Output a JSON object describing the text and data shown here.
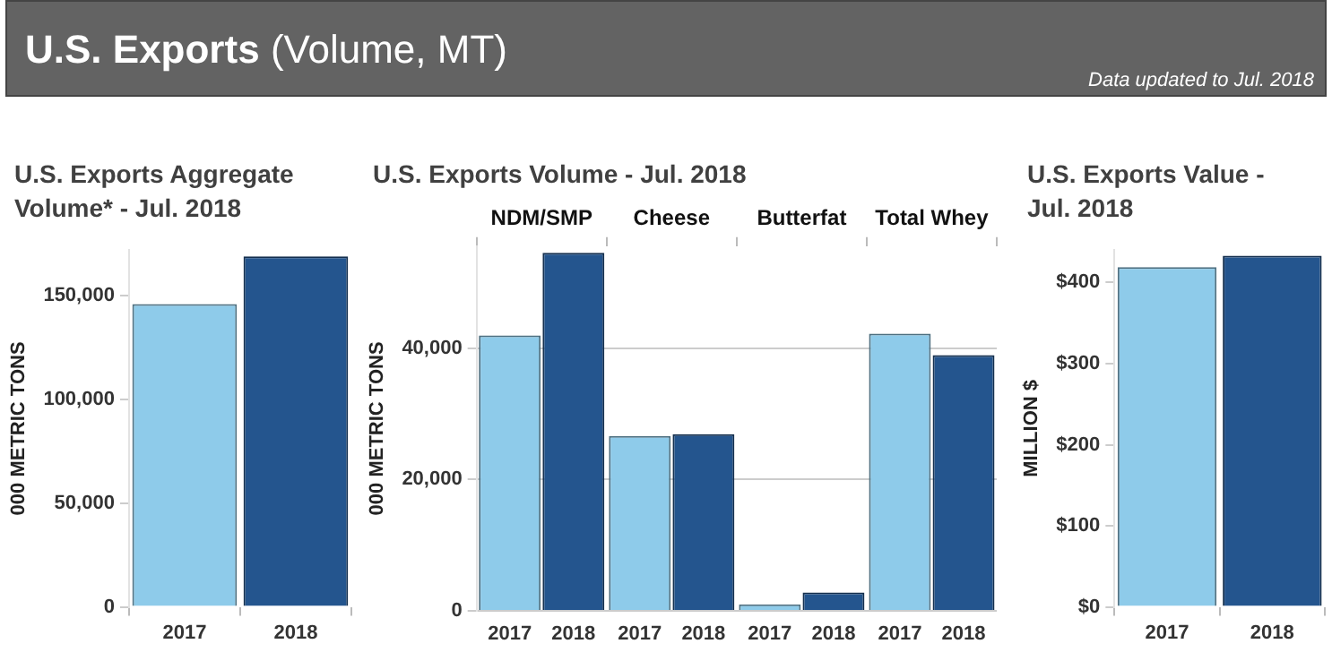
{
  "chart_data": [
    {
      "type": "other",
      "title": "U.S. Exports",
      "subtitle": "(Volume, MT)",
      "annotations": [
        "Data updated to Jul. 2018"
      ]
    },
    {
      "type": "bar",
      "title": "U.S. Exports Aggregate Volume* - Jul. 2018",
      "ylabel": "000 METRIC TONS",
      "categories": [
        "2017",
        "2018"
      ],
      "values": [
        146000,
        169000
      ],
      "colors": [
        "#8ecbea",
        "#24558e"
      ],
      "ylim": [
        0,
        172000
      ],
      "yticks": [
        0,
        {
          "value": 50000,
          "label": "50,000"
        },
        {
          "value": 100000,
          "label": "100,000"
        },
        {
          "value": 150000,
          "label": "150,000"
        }
      ],
      "grid": false
    },
    {
      "type": "bar",
      "title": "U.S. Exports Volume - Jul. 2018",
      "ylabel": "000 METRIC TONS",
      "categories": [
        "NDM/SMP",
        "Cheese",
        "Butterfat",
        "Total Whey"
      ],
      "series": [
        {
          "name": "2017",
          "color": "#8ecbea",
          "values": [
            41900,
            26600,
            1000,
            42200
          ]
        },
        {
          "name": "2018",
          "color": "#24558e",
          "values": [
            54500,
            26900,
            2800,
            38900
          ]
        }
      ],
      "ylim": [
        0,
        55500
      ],
      "yticks": [
        0,
        {
          "value": 20000,
          "label": "20,000"
        },
        {
          "value": 40000,
          "label": "40,000"
        }
      ],
      "grid": "y"
    },
    {
      "type": "bar",
      "title": "U.S. Exports Value - Jul. 2018",
      "ylabel": "MILLION $",
      "categories": [
        "2017",
        "2018"
      ],
      "values": [
        419,
        433
      ],
      "colors": [
        "#8ecbea",
        "#24558e"
      ],
      "ylim": [
        0,
        440
      ],
      "yticks": [
        {
          "value": 0,
          "label": "$0"
        },
        {
          "value": 100,
          "label": "$100"
        },
        {
          "value": 200,
          "label": "$200"
        },
        {
          "value": 300,
          "label": "$300"
        },
        {
          "value": 400,
          "label": "$400"
        }
      ],
      "grid": false
    }
  ]
}
